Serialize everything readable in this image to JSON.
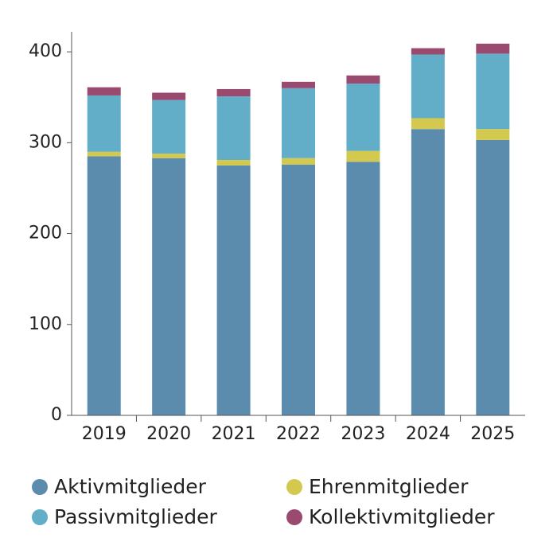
{
  "chart_data": {
    "type": "stacked_bar",
    "categories": [
      "2019",
      "2020",
      "2021",
      "2022",
      "2023",
      "2024",
      "2025"
    ],
    "series": [
      {
        "name": "Aktivmitglieder",
        "color": "#5b8cae",
        "values": [
          285,
          283,
          275,
          276,
          279,
          315,
          303
        ]
      },
      {
        "name": "Ehrenmitglieder",
        "color": "#d4c94f",
        "values": [
          5,
          5,
          6,
          7,
          12,
          12,
          12
        ]
      },
      {
        "name": "Passivmitglieder",
        "color": "#62aec8",
        "values": [
          62,
          59,
          70,
          77,
          74,
          70,
          83
        ]
      },
      {
        "name": "Kollektivmitglieder",
        "color": "#9a4a6e",
        "values": [
          9,
          8,
          8,
          7,
          9,
          7,
          11
        ]
      }
    ],
    "ylim": [
      0,
      422
    ],
    "yticks": [
      0,
      100,
      200,
      300,
      400
    ]
  }
}
